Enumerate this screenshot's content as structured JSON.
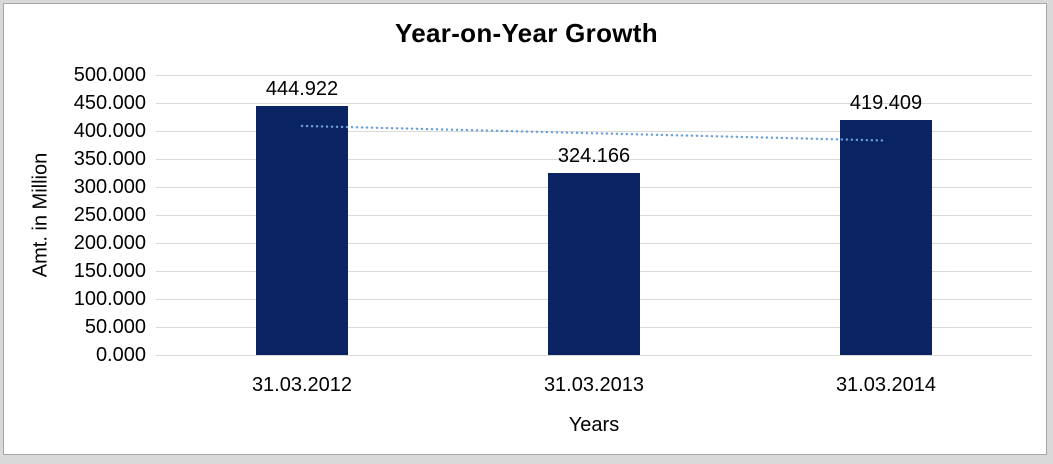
{
  "chart_data": {
    "type": "bar",
    "title": "Year-on-Year Growth",
    "xlabel": "Years",
    "ylabel": "Amt. in Million",
    "categories": [
      "31.03.2012",
      "31.03.2013",
      "31.03.2014"
    ],
    "values": [
      444.922,
      324.166,
      419.409
    ],
    "value_labels": [
      "444.922",
      "324.166",
      "419.409"
    ],
    "ylim": [
      0,
      500
    ],
    "ytick_interval": 50,
    "ytick_labels": [
      "0.000",
      "50.000",
      "100.000",
      "150.000",
      "200.000",
      "250.000",
      "300.000",
      "350.000",
      "400.000",
      "450.000",
      "500.000"
    ],
    "grid": true,
    "legend_position": "none",
    "trendline": {
      "type": "linear",
      "line_style": "dotted",
      "value_at_first_bar": 409,
      "value_at_last_bar": 383
    },
    "colors": {
      "bar": "#0a2463",
      "trendline": "#6b9fd9",
      "gridline": "#d9d9d9",
      "text": "#000000",
      "frame_border": "#a6a6a6",
      "frame_margin": "#d9d9d9"
    }
  }
}
